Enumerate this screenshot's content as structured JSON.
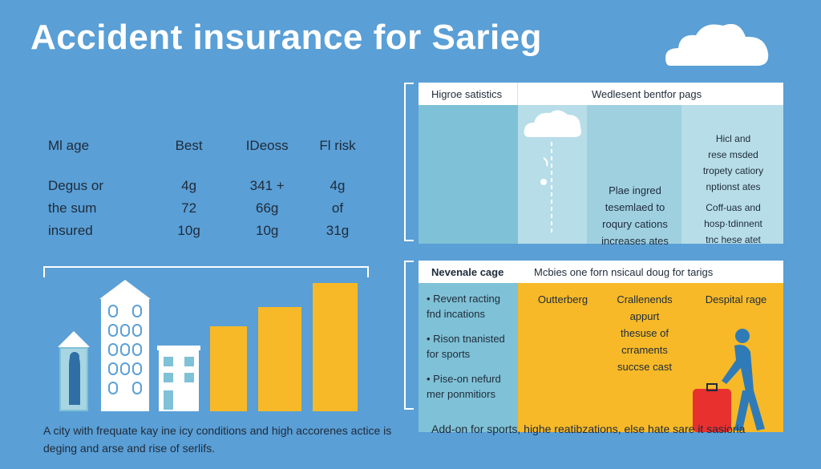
{
  "title": "Accident insurance for Sarieg",
  "stats": {
    "headers": [
      "Ml age",
      "Best",
      "IDeoss",
      "Fl risk"
    ],
    "rows": [
      [
        "Degus or",
        "4g",
        "341 +",
        "4g"
      ],
      [
        "the sum",
        "72",
        "66g",
        "of"
      ],
      [
        "insured",
        "10g",
        "10g",
        "31g"
      ]
    ]
  },
  "caption_left": "A city with frequate kay ine icy conditions and high accorenes actice is deging and arse and rise of serlifs.",
  "panel_top": {
    "header_left": "Higroe satistics",
    "header_right": "Wedlesent bentfor pags",
    "mid_lines": [
      "Plae ingred",
      "tesemlaed to",
      "roqury cations",
      "increases ates"
    ],
    "right_lines_a": [
      "Hicl and",
      "rese msded",
      "tropety catiory",
      "nptionst ates"
    ],
    "right_lines_b": [
      "Coff-uas and",
      "hosp·tdinnent",
      "tnc hese atet"
    ]
  },
  "panel_bottom": {
    "header_left": "Nevenale cage",
    "header_right": "Mcbies one forn nsicaul doug for tarigs",
    "bullets": [
      "• Revent racting fnd incations",
      "• Rison tnanisted for sports",
      "• Pise-on nefurd mer ponmitiors"
    ],
    "col1": "Outterberg",
    "col2_lines": [
      "Crallenends",
      "appurt",
      "thesuse of",
      "crraments",
      "succse cast"
    ],
    "col3": "Despital rage"
  },
  "caption_right": "Add-on for sports, highe reatibzations, else hate sare it sasioria",
  "colors": {
    "background": "#5a9fd6",
    "yellow": "#f7b928",
    "teal": "#7fc1d6",
    "light_teal": "#a8d5e2",
    "suitcase": "#e8302f",
    "figure": "#2f7bb8"
  }
}
